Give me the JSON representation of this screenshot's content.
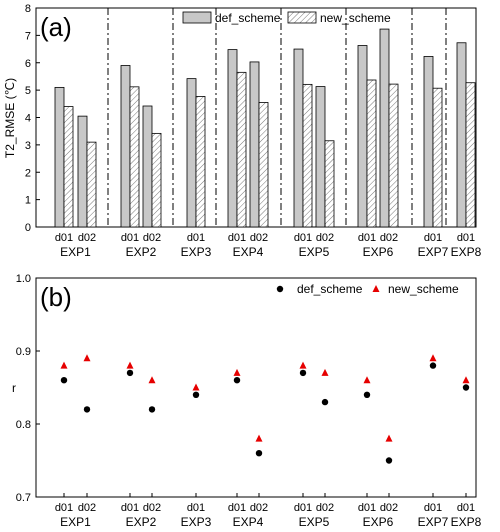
{
  "colors": {
    "def_bar": "#c8c8c8",
    "def_dot": "#000000",
    "new_tri": "#e60000",
    "axis": "#000000"
  },
  "chart_data": [
    {
      "type": "bar",
      "panel_label": "(a)",
      "ylabel": "T2_RMSE (℃)",
      "ylim": [
        0,
        8
      ],
      "yticks": [
        "0",
        "1",
        "2",
        "3",
        "4",
        "5",
        "6",
        "7",
        "8"
      ],
      "categories": [
        "d01",
        "d02",
        "d01",
        "d02",
        "d01",
        "d01",
        "d02",
        "d01",
        "d02",
        "d01",
        "d02",
        "d01",
        "d01"
      ],
      "groups": [
        {
          "label": "EXP1",
          "domains": [
            "d01",
            "d02"
          ]
        },
        {
          "label": "EXP2",
          "domains": [
            "d01",
            "d02"
          ]
        },
        {
          "label": "EXP3",
          "domains": [
            "d01"
          ]
        },
        {
          "label": "EXP4",
          "domains": [
            "d01",
            "d02"
          ]
        },
        {
          "label": "EXP5",
          "domains": [
            "d01",
            "d02"
          ]
        },
        {
          "label": "EXP6",
          "domains": [
            "d01",
            "d02"
          ]
        },
        {
          "label": "EXP7",
          "domains": [
            "d01"
          ]
        },
        {
          "label": "EXP8",
          "domains": [
            "d01"
          ]
        }
      ],
      "series": [
        {
          "name": "def_scheme",
          "values": [
            5.1,
            4.05,
            5.9,
            4.42,
            5.42,
            6.48,
            6.03,
            6.5,
            5.13,
            6.63,
            7.23,
            6.23,
            6.73
          ]
        },
        {
          "name": "new_scheme",
          "values": [
            4.4,
            3.1,
            5.12,
            3.42,
            4.77,
            5.65,
            4.55,
            5.21,
            3.15,
            5.37,
            5.22,
            5.07,
            5.27
          ]
        }
      ],
      "legend_position": "top-right"
    },
    {
      "type": "scatter",
      "panel_label": "(b)",
      "ylabel": "r",
      "ylim": [
        0.7,
        1.0
      ],
      "yticks": [
        "0.7",
        "0.8",
        "0.9",
        "1.0"
      ],
      "categories": [
        "d01",
        "d02",
        "d01",
        "d02",
        "d01",
        "d01",
        "d02",
        "d01",
        "d02",
        "d01",
        "d02",
        "d01",
        "d01"
      ],
      "groups": [
        {
          "label": "EXP1",
          "domains": [
            "d01",
            "d02"
          ]
        },
        {
          "label": "EXP2",
          "domains": [
            "d01",
            "d02"
          ]
        },
        {
          "label": "EXP3",
          "domains": [
            "d01"
          ]
        },
        {
          "label": "EXP4",
          "domains": [
            "d01",
            "d02"
          ]
        },
        {
          "label": "EXP5",
          "domains": [
            "d01",
            "d02"
          ]
        },
        {
          "label": "EXP6",
          "domains": [
            "d01",
            "d02"
          ]
        },
        {
          "label": "EXP7",
          "domains": [
            "d01"
          ]
        },
        {
          "label": "EXP8",
          "domains": [
            "d01"
          ]
        }
      ],
      "series": [
        {
          "name": "def_scheme",
          "values": [
            0.86,
            0.82,
            0.87,
            0.82,
            0.84,
            0.86,
            0.76,
            0.87,
            0.83,
            0.84,
            0.75,
            0.88,
            0.85
          ]
        },
        {
          "name": "new_scheme",
          "values": [
            0.88,
            0.89,
            0.88,
            0.86,
            0.85,
            0.87,
            0.78,
            0.88,
            0.87,
            0.86,
            0.78,
            0.89,
            0.86
          ]
        }
      ],
      "legend_position": "top-right"
    }
  ]
}
